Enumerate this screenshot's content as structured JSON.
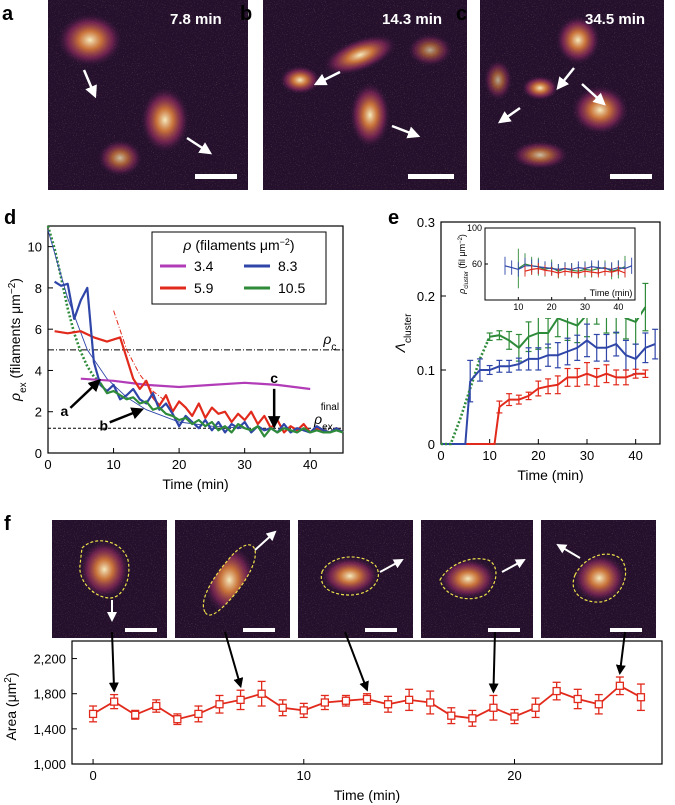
{
  "panel_labels": {
    "a": "a",
    "b": "b",
    "c": "c",
    "d": "d",
    "e": "e",
    "f": "f"
  },
  "micrographs": {
    "a": {
      "time": "7.8 min"
    },
    "b": {
      "time": "14.3 min"
    },
    "c": {
      "time": "34.5 min"
    }
  },
  "colors": {
    "purple": "#b23cb8",
    "red": "#e12a1c",
    "blue": "#2f46a8",
    "green": "#2e8b3a",
    "bg_dark": "#25102e",
    "glow": "#ff9a4a",
    "legend_border": "#000000"
  },
  "chart_data": [
    {
      "id": "d",
      "type": "line",
      "xlabel_main": "Time (min)",
      "ylabel_symbol": "ρ",
      "ylabel_sub": "ex",
      "ylabel_rest": " (filaments μm",
      "ylabel_sup": "−2",
      "ylabel_close": ")",
      "xlim": [
        0,
        45
      ],
      "ylim": [
        0,
        11
      ],
      "xticks": [
        0,
        10,
        20,
        30,
        40
      ],
      "yticks": [
        0,
        2,
        4,
        6,
        8,
        10
      ],
      "legend_title_symbol": "ρ",
      "legend_title_rest": " (filaments μm",
      "legend_title_sup": "−2",
      "legend_title_close": ")",
      "rho_c_value": 5.0,
      "rho_c_label": "ρ",
      "rho_c_sub": "c",
      "rho_final_value": 1.2,
      "rho_final_label": "ρ",
      "rho_final_sub": "ex",
      "rho_final_sup": "final",
      "annotations": [
        {
          "label": "a",
          "x": 7.8,
          "y": 3.6
        },
        {
          "label": "b",
          "x": 14.3,
          "y": 2.2
        },
        {
          "label": "c",
          "x": 34.5,
          "y": 1.3
        }
      ],
      "series": [
        {
          "name": "3.4",
          "color": "#b23cb8",
          "x": [
            5,
            10,
            15,
            20,
            25,
            30,
            35,
            40
          ],
          "y": [
            3.6,
            3.5,
            3.3,
            3.2,
            3.3,
            3.4,
            3.3,
            3.1
          ]
        },
        {
          "name": "5.9",
          "color": "#e12a1c",
          "x": [
            1,
            3,
            5,
            7,
            9,
            11,
            12,
            13,
            14,
            15,
            16,
            17,
            18,
            19,
            20,
            21,
            22,
            23,
            24,
            25,
            26,
            27,
            28,
            29,
            30,
            31,
            32,
            33,
            34,
            35,
            36,
            37,
            38,
            39,
            40,
            41,
            42,
            43,
            44,
            45
          ],
          "y": [
            5.9,
            5.8,
            5.9,
            5.6,
            5.4,
            5.6,
            4.6,
            3.6,
            3.1,
            3.5,
            2.7,
            2.3,
            2.8,
            2.0,
            2.5,
            2.2,
            1.8,
            2.4,
            1.7,
            2.2,
            1.9,
            2.0,
            1.5,
            1.9,
            1.6,
            2.0,
            1.4,
            1.8,
            1.2,
            1.6,
            1.0,
            1.3,
            1.1,
            1.4,
            1.0,
            1.2,
            1.1,
            1.0,
            1.2,
            1.0
          ]
        },
        {
          "name": "8.3",
          "color": "#2f46a8",
          "x": [
            1,
            2,
            3,
            4,
            5,
            6,
            7,
            8,
            9,
            10,
            11,
            12,
            13,
            14,
            15,
            16,
            17,
            18,
            19,
            20,
            21,
            22,
            23,
            24,
            25,
            26,
            27,
            28,
            29,
            30,
            31,
            32,
            33,
            34,
            35,
            36,
            37,
            38,
            39,
            40,
            41,
            42,
            43,
            44,
            45
          ],
          "y": [
            8.3,
            8.1,
            8.2,
            6.5,
            7.4,
            8.0,
            4.4,
            3.3,
            3.0,
            3.3,
            2.6,
            2.8,
            3.1,
            2.6,
            2.4,
            2.9,
            2.1,
            2.4,
            1.9,
            1.3,
            1.8,
            1.5,
            1.2,
            1.6,
            1.1,
            1.5,
            1.0,
            1.4,
            1.2,
            1.5,
            1.0,
            1.3,
            1.1,
            1.2,
            1.0,
            1.4,
            1.0,
            1.2,
            1.1,
            1.0,
            1.3,
            1.1,
            1.0,
            1.2,
            1.0
          ]
        },
        {
          "name": "10.5",
          "color": "#2e8b3a",
          "x": [
            8,
            9,
            10,
            11,
            12,
            13,
            14,
            15,
            16,
            17,
            18,
            19,
            20,
            21,
            22,
            23,
            24,
            25,
            26,
            27,
            28,
            29,
            30,
            31,
            32,
            33,
            34,
            35,
            36,
            37,
            38,
            39,
            40,
            41,
            42,
            43,
            44,
            45
          ],
          "y": [
            3.4,
            2.9,
            3.0,
            2.8,
            2.6,
            2.7,
            2.4,
            2.5,
            2.1,
            2.2,
            1.9,
            1.8,
            1.6,
            1.7,
            1.4,
            1.6,
            1.3,
            1.5,
            1.1,
            1.3,
            1.0,
            1.4,
            1.2,
            1.1,
            1.3,
            0.8,
            1.2,
            1.0,
            1.2,
            1.1,
            1.0,
            1.2,
            1.0,
            1.1,
            1.0,
            1.0,
            1.1,
            1.0
          ]
        }
      ],
      "fits": [
        {
          "color": "#2e8b3a",
          "style": "dotted",
          "x": [
            0,
            1,
            2,
            3,
            4,
            5,
            6,
            7,
            8
          ],
          "y": [
            11,
            9.9,
            8.5,
            7.0,
            5.8,
            4.9,
            4.2,
            3.7,
            3.4
          ]
        },
        {
          "color": "#2f46a8",
          "style": "thin",
          "x": [
            0,
            3,
            6,
            9,
            12,
            15,
            20,
            25,
            30
          ],
          "y": [
            10.8,
            7.5,
            5.0,
            3.6,
            2.7,
            2.1,
            1.5,
            1.3,
            1.2
          ]
        },
        {
          "color": "#e12a1c",
          "style": "dashdot",
          "x": [
            10,
            12,
            14,
            16,
            18
          ],
          "y": [
            6.9,
            5.0,
            3.8,
            3.0,
            2.5
          ]
        }
      ]
    },
    {
      "id": "e",
      "type": "line",
      "xlabel_main": "Time (min)",
      "ylabel_symbol": "Λ",
      "ylabel_sub": "cluster",
      "xlim": [
        0,
        45
      ],
      "ylim": [
        0,
        0.3
      ],
      "xticks": [
        0,
        10,
        20,
        30,
        40
      ],
      "yticks": [
        0,
        0.1,
        0.2,
        0.3
      ],
      "ytick_labels": [
        "0",
        "0.1",
        "0.2",
        "0.3"
      ],
      "series": [
        {
          "name": "green",
          "color": "#2e8b3a",
          "x": [
            10,
            12,
            14,
            16,
            18,
            20,
            22,
            24,
            26,
            28,
            30,
            32,
            34,
            36,
            38,
            40,
            42
          ],
          "y": [
            0.145,
            0.147,
            0.14,
            0.13,
            0.145,
            0.15,
            0.15,
            0.17,
            0.165,
            0.16,
            0.175,
            0.19,
            0.175,
            0.18,
            0.17,
            0.165,
            0.185
          ],
          "err": [
            0.005,
            0.006,
            0.012,
            0.018,
            0.02,
            0.022,
            0.02,
            0.025,
            0.025,
            0.023,
            0.03,
            0.028,
            0.025,
            0.03,
            0.028,
            0.03,
            0.032
          ]
        },
        {
          "name": "blue",
          "color": "#2f46a8",
          "x": [
            6,
            8,
            10,
            12,
            14,
            16,
            18,
            20,
            22,
            24,
            26,
            28,
            30,
            32,
            34,
            36,
            38,
            40,
            42,
            44
          ],
          "y": [
            0.085,
            0.1,
            0.1,
            0.105,
            0.105,
            0.108,
            0.115,
            0.115,
            0.12,
            0.12,
            0.125,
            0.13,
            0.14,
            0.13,
            0.13,
            0.135,
            0.12,
            0.115,
            0.13,
            0.135
          ],
          "err": [
            0.028,
            0.015,
            0.006,
            0.008,
            0.008,
            0.008,
            0.015,
            0.015,
            0.015,
            0.017,
            0.018,
            0.017,
            0.022,
            0.018,
            0.018,
            0.016,
            0.02,
            0.02,
            0.02,
            0.02
          ]
        },
        {
          "name": "red",
          "color": "#e12a1c",
          "x": [
            12,
            14,
            16,
            18,
            20,
            22,
            24,
            26,
            28,
            30,
            32,
            34,
            36,
            38,
            40,
            42
          ],
          "y": [
            0.05,
            0.06,
            0.06,
            0.065,
            0.075,
            0.078,
            0.08,
            0.09,
            0.09,
            0.095,
            0.09,
            0.095,
            0.09,
            0.09,
            0.095,
            0.095
          ],
          "err": [
            0.008,
            0.008,
            0.006,
            0.005,
            0.01,
            0.01,
            0.012,
            0.012,
            0.012,
            0.015,
            0.012,
            0.012,
            0.01,
            0.01,
            0.006,
            0.005
          ]
        }
      ],
      "baselines": [
        {
          "color": "#e12a1c",
          "x": [
            0,
            12
          ],
          "y": [
            0.0,
            0.05
          ],
          "step_x": 11
        },
        {
          "color": "#2f46a8",
          "x": [
            0,
            6
          ],
          "y": [
            0.0,
            0.085
          ],
          "step_x": 5
        }
      ],
      "green_dotted": {
        "x": [
          0,
          2,
          4,
          6,
          8,
          10
        ],
        "y": [
          0.0,
          0.0,
          0.035,
          0.075,
          0.115,
          0.145
        ]
      },
      "inset": {
        "ylabel_symbol": "ρ",
        "ylabel_sub": "cluster",
        "ylabel_rest": " (fil μm",
        "ylabel_sup": "−2",
        "ylabel_close": ")",
        "xlabel": "Time (min)",
        "xlim": [
          0,
          45
        ],
        "ylim": [
          20,
          100
        ],
        "xticks": [
          10,
          20,
          30,
          40
        ],
        "yticks": [
          60,
          100
        ],
        "series": [
          {
            "color": "#2e8b3a",
            "x": [
              10,
              12,
              14,
              16,
              18,
              20,
              22,
              24,
              26,
              28,
              30,
              32,
              34,
              36,
              38,
              40,
              42
            ],
            "y": [
              55,
              60,
              58,
              57,
              54,
              56,
              52,
              55,
              53,
              52,
              54,
              53,
              55,
              56,
              52,
              54,
              57
            ],
            "err": [
              22,
              12,
              10,
              10,
              8,
              9,
              8,
              7,
              8,
              8,
              9,
              8,
              8,
              8,
              9,
              10,
              12
            ]
          },
          {
            "color": "#2f46a8",
            "x": [
              6,
              8,
              10,
              12,
              14,
              16,
              18,
              20,
              22,
              24,
              26,
              28,
              30,
              32,
              34,
              36,
              38,
              40,
              42,
              44
            ],
            "y": [
              58,
              56,
              54,
              58,
              58,
              57,
              56,
              55,
              54,
              55,
              54,
              56,
              55,
              57,
              56,
              55,
              54,
              56,
              55,
              58
            ],
            "err": [
              10,
              8,
              8,
              9,
              7,
              8,
              7,
              7,
              6,
              7,
              7,
              7,
              7,
              7,
              8,
              7,
              8,
              8,
              8,
              9
            ]
          },
          {
            "color": "#e12a1c",
            "x": [
              12,
              14,
              16,
              18,
              20,
              22,
              24,
              26,
              28,
              30,
              32,
              34,
              36,
              38,
              40,
              42
            ],
            "y": [
              52,
              54,
              55,
              53,
              52,
              50,
              52,
              51,
              50,
              52,
              51,
              50,
              52,
              51,
              53,
              50
            ],
            "err": [
              6,
              6,
              6,
              6,
              5,
              5,
              5,
              5,
              5,
              5,
              5,
              5,
              5,
              5,
              5,
              5
            ]
          }
        ]
      }
    },
    {
      "id": "f",
      "type": "line",
      "xlabel_main": "Time (min)",
      "ylabel_main": "Area (μm",
      "ylabel_sup": "2",
      "ylabel_close": ")",
      "xlim": [
        -1,
        27
      ],
      "ylim": [
        1000,
        2400
      ],
      "xticks": [
        0,
        10,
        20
      ],
      "yticks": [
        1000,
        1400,
        1800,
        2200
      ],
      "ytick_labels": [
        "1,000",
        "1,400",
        "1,800",
        "2,200"
      ],
      "series": [
        {
          "name": "area",
          "color": "#e12a1c",
          "x": [
            0,
            1,
            2,
            3,
            4,
            5,
            6,
            7,
            8,
            9,
            10,
            11,
            12,
            13,
            14,
            15,
            16,
            17,
            18,
            19,
            20,
            21,
            22,
            23,
            24,
            25,
            26
          ],
          "y": [
            1570,
            1710,
            1560,
            1660,
            1510,
            1570,
            1680,
            1730,
            1800,
            1640,
            1610,
            1700,
            1720,
            1740,
            1680,
            1730,
            1700,
            1550,
            1520,
            1640,
            1540,
            1640,
            1830,
            1740,
            1680,
            1890,
            1760
          ],
          "err": [
            90,
            80,
            50,
            70,
            60,
            90,
            100,
            110,
            140,
            90,
            80,
            80,
            60,
            60,
            90,
            120,
            130,
            90,
            90,
            140,
            80,
            110,
            100,
            110,
            110,
            100,
            150
          ]
        }
      ],
      "arrow_times": [
        1,
        7,
        13,
        19,
        25
      ]
    }
  ]
}
